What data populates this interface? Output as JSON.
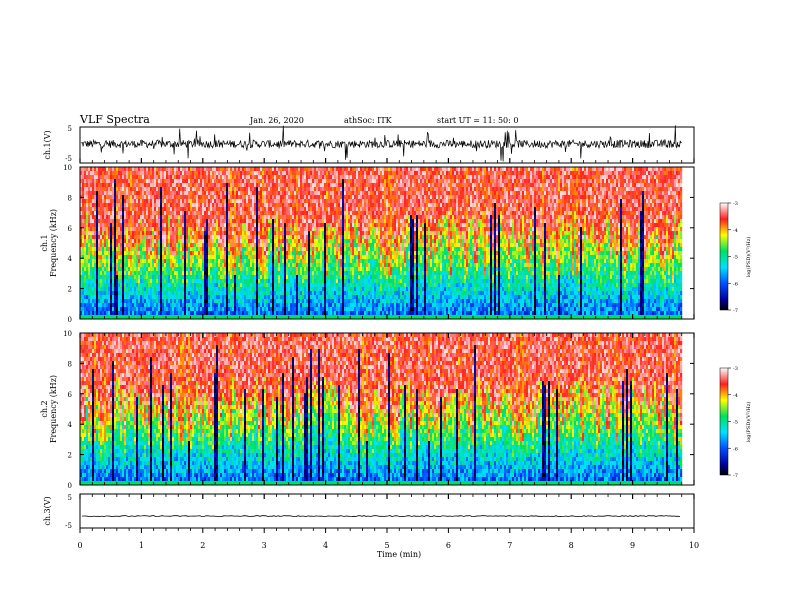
{
  "header": {
    "title": "VLF Spectra",
    "date": "Jan. 26, 2020",
    "site": "athSoc: ITK",
    "start": "start UT =  11: 50: 0"
  },
  "chart_data": [
    {
      "type": "line",
      "panel": "ch1-waveform",
      "ylabel": "ch.1(V)",
      "ylim": [
        -5,
        5
      ],
      "yticks": [
        -5,
        5
      ],
      "description": "noisy voltage trace around ~0 V with frequent spikes",
      "x_range_min": [
        0,
        9.8
      ],
      "baseline_v": 0.3,
      "color": "#000000"
    },
    {
      "type": "heatmap",
      "panel": "ch1-spectrogram",
      "ylabel": "ch.1 Frequency (kHz)",
      "ylim": [
        0,
        10
      ],
      "yticks": [
        0,
        2,
        4,
        6,
        8,
        10
      ],
      "x_range_min": [
        0,
        9.8
      ],
      "colorbar": {
        "label": "log(PSD)(V²/Hz)",
        "range": [
          -7,
          -3
        ],
        "ticks": [
          -3,
          -4,
          -5,
          -6,
          -7
        ]
      }
    },
    {
      "type": "heatmap",
      "panel": "ch2-spectrogram",
      "ylabel": "ch.2 Frequency (kHz)",
      "ylim": [
        0,
        10
      ],
      "yticks": [
        0,
        2,
        4,
        6,
        8,
        10
      ],
      "x_range_min": [
        0,
        9.8
      ],
      "colorbar": {
        "label": "log(PSD)(V²/Hz)",
        "range": [
          -7,
          -3
        ],
        "ticks": [
          -3,
          -4,
          -5,
          -6,
          -7
        ]
      }
    },
    {
      "type": "line",
      "panel": "ch3-waveform",
      "ylabel": "ch.3(V)",
      "ylim": [
        -5,
        5
      ],
      "yticks": [
        -5,
        5
      ],
      "description": "flat trace at about -1.5 V",
      "x_range_min": [
        0,
        9.8
      ],
      "baseline_v": -1.5,
      "color": "#000000"
    }
  ],
  "xaxis": {
    "label": "Time (min)",
    "range": [
      0,
      10
    ],
    "ticks": [
      "0",
      "1",
      "2",
      "3",
      "4",
      "5",
      "6",
      "7",
      "8",
      "9",
      "10"
    ]
  }
}
